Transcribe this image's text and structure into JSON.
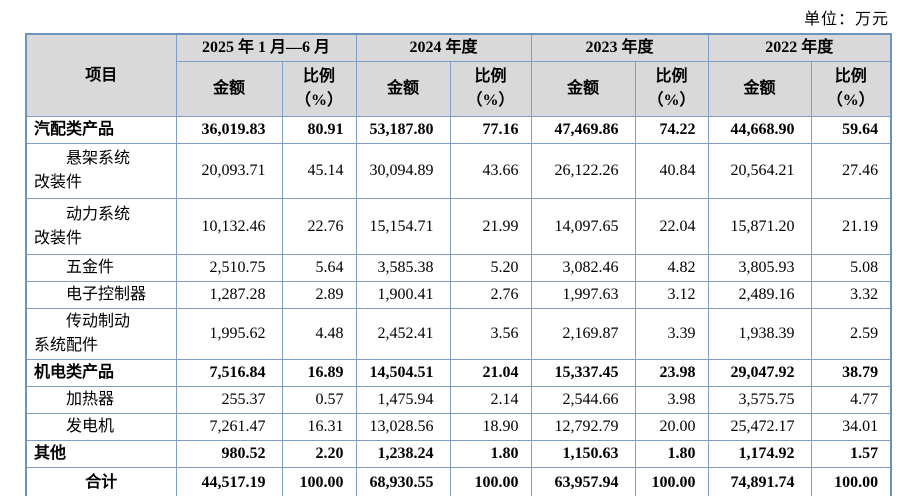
{
  "unit_label": "单位：万元",
  "colors": {
    "border": "#7f9fc6",
    "outer_border": "#6d93bd",
    "header_bg": "#d9d9d9",
    "text": "#000000"
  },
  "table": {
    "item_header": "项目",
    "amount_header": "金额",
    "ratio_header": "比例\n（%）",
    "periods": [
      {
        "label": "2025 年 1 月—6 月"
      },
      {
        "label": "2024 年度"
      },
      {
        "label": "2023 年度"
      },
      {
        "label": "2022 年度"
      }
    ],
    "rows": [
      {
        "name": "汽配类产品",
        "style": "category",
        "values": [
          "36,019.83",
          "80.91",
          "53,187.80",
          "77.16",
          "47,469.86",
          "74.22",
          "44,668.90",
          "59.64"
        ]
      },
      {
        "name": "悬架系统\n改装件",
        "style": "sub",
        "values": [
          "20,093.71",
          "45.14",
          "30,094.89",
          "43.66",
          "26,122.26",
          "40.84",
          "20,564.21",
          "27.46"
        ]
      },
      {
        "name": "动力系统\n改装件",
        "style": "sub",
        "values": [
          "10,132.46",
          "22.76",
          "15,154.71",
          "21.99",
          "14,097.65",
          "22.04",
          "15,871.20",
          "21.19"
        ]
      },
      {
        "name": "五金件",
        "style": "sub",
        "values": [
          "2,510.75",
          "5.64",
          "3,585.38",
          "5.20",
          "3,082.46",
          "4.82",
          "3,805.93",
          "5.08"
        ]
      },
      {
        "name": "电子控制器",
        "style": "sub",
        "values": [
          "1,287.28",
          "2.89",
          "1,900.41",
          "2.76",
          "1,997.63",
          "3.12",
          "2,489.16",
          "3.32"
        ]
      },
      {
        "name": "传动制动\n系统配件",
        "style": "sub",
        "values": [
          "1,995.62",
          "4.48",
          "2,452.41",
          "3.56",
          "2,169.87",
          "3.39",
          "1,938.39",
          "2.59"
        ]
      },
      {
        "name": "机电类产品",
        "style": "category",
        "values": [
          "7,516.84",
          "16.89",
          "14,504.51",
          "21.04",
          "15,337.45",
          "23.98",
          "29,047.92",
          "38.79"
        ]
      },
      {
        "name": "加热器",
        "style": "sub",
        "values": [
          "255.37",
          "0.57",
          "1,475.94",
          "2.14",
          "2,544.66",
          "3.98",
          "3,575.75",
          "4.77"
        ]
      },
      {
        "name": "发电机",
        "style": "sub",
        "values": [
          "7,261.47",
          "16.31",
          "13,028.56",
          "18.90",
          "12,792.79",
          "20.00",
          "25,472.17",
          "34.01"
        ]
      },
      {
        "name": "其他",
        "style": "category",
        "values": [
          "980.52",
          "2.20",
          "1,238.24",
          "1.80",
          "1,150.63",
          "1.80",
          "1,174.92",
          "1.57"
        ]
      },
      {
        "name": "合计",
        "style": "total",
        "values": [
          "44,517.19",
          "100.00",
          "68,930.55",
          "100.00",
          "63,957.94",
          "100.00",
          "74,891.74",
          "100.00"
        ]
      }
    ]
  }
}
